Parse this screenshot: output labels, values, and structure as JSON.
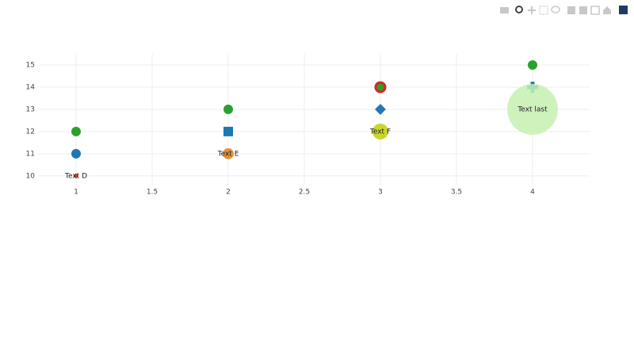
{
  "chart_data": {
    "type": "scatter",
    "x": [
      1,
      2,
      3,
      4
    ],
    "xlim": [
      0.75,
      4.375
    ],
    "ylim": [
      9.6,
      15.5
    ],
    "xticks": [
      1,
      1.5,
      2,
      2.5,
      3,
      3.5,
      4
    ],
    "yticks": [
      10,
      11,
      12,
      13,
      14,
      15
    ],
    "grid": true,
    "series": [
      {
        "color": "#1f77b4",
        "values": [
          11,
          12,
          13,
          14
        ],
        "symbols": [
          "circle",
          "square",
          "diamond",
          "cross"
        ],
        "sizes": [
          12,
          12,
          12,
          14
        ]
      },
      {
        "color": "#ff7f0e",
        "values": [
          10,
          11,
          12,
          13
        ],
        "colors": [
          "#d9542a",
          "#e0953a",
          "#c8d62b",
          "#c6f0b0"
        ],
        "sizes": [
          6,
          14,
          20,
          64
        ],
        "text": [
          "Text D",
          "Text E",
          "Text F",
          "Text last"
        ]
      },
      {
        "color": "#2ca02c",
        "values": [
          12,
          13,
          14,
          15
        ],
        "sizes": [
          12,
          12,
          12,
          12
        ],
        "line_colors": [
          null,
          null,
          "#d62728",
          null
        ]
      }
    ]
  }
}
